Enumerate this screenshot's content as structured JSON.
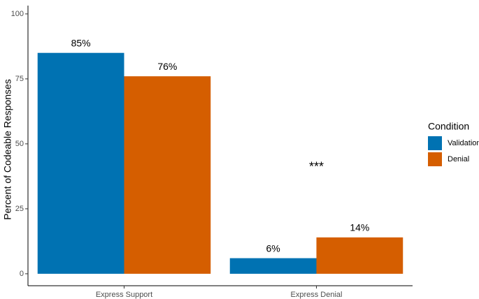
{
  "chart_data": {
    "type": "bar",
    "y_label": "Percent of Codeable Responses",
    "categories": [
      "Express Support",
      "Express Denial"
    ],
    "series": [
      {
        "name": "Validation",
        "color": "#0072B2",
        "values": [
          85,
          6
        ],
        "value_labels": [
          "85%",
          "6%"
        ]
      },
      {
        "name": "Denial",
        "color": "#D55E00",
        "values": [
          76,
          14
        ],
        "value_labels": [
          "76%",
          "14%"
        ]
      }
    ],
    "annotations": [
      "***",
      "***"
    ],
    "legend_title": "Condition",
    "legend": "right",
    "ylim": [
      -4.6,
      103.2
    ],
    "yticks": [
      0,
      25,
      50,
      75,
      100
    ],
    "grid": false
  }
}
